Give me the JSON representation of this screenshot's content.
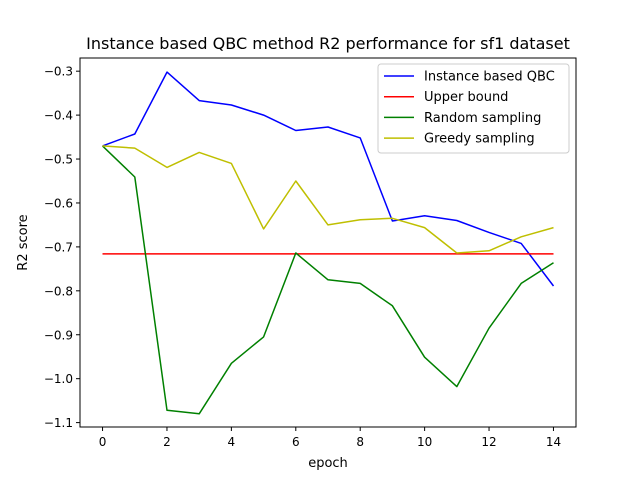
{
  "chart_data": {
    "type": "line",
    "title": "Instance based QBC method R2 performance for sf1 dataset",
    "xlabel": "epoch",
    "ylabel": "R2 score",
    "xlim": [
      -0.7,
      14.7
    ],
    "ylim": [
      -1.11,
      -0.27
    ],
    "xticks": [
      0,
      2,
      4,
      6,
      8,
      10,
      12,
      14
    ],
    "xtick_labels": [
      "0",
      "2",
      "4",
      "6",
      "8",
      "10",
      "12",
      "14"
    ],
    "yticks": [
      -1.1,
      -1.0,
      -0.9,
      -0.8,
      -0.7,
      -0.6,
      -0.5,
      -0.4,
      -0.3
    ],
    "ytick_labels": [
      "−1.1",
      "−1.0",
      "−0.9",
      "−0.8",
      "−0.7",
      "−0.6",
      "−0.5",
      "−0.4",
      "−0.3"
    ],
    "grid": false,
    "legend_position": "top-right",
    "x": [
      0,
      1,
      2,
      3,
      4,
      5,
      6,
      7,
      8,
      9,
      10,
      11,
      12,
      13,
      14
    ],
    "series": [
      {
        "name": "Instance based QBC",
        "color": "#0000ff",
        "values": [
          -0.47,
          -0.443,
          -0.302,
          -0.367,
          -0.377,
          -0.4,
          -0.435,
          -0.427,
          -0.452,
          -0.641,
          -0.629,
          -0.64,
          -0.667,
          -0.692,
          -0.789
        ]
      },
      {
        "name": "Upper bound",
        "color": "#ff0000",
        "values": [
          -0.716,
          -0.716,
          -0.716,
          -0.716,
          -0.716,
          -0.716,
          -0.716,
          -0.716,
          -0.716,
          -0.716,
          -0.716,
          -0.716,
          -0.716,
          -0.716,
          -0.716
        ]
      },
      {
        "name": "Random sampling",
        "color": "#008000",
        "values": [
          -0.47,
          -0.541,
          -1.072,
          -1.08,
          -0.965,
          -0.905,
          -0.714,
          -0.775,
          -0.783,
          -0.834,
          -0.951,
          -1.018,
          -0.885,
          -0.783,
          -0.736
        ]
      },
      {
        "name": "Greedy sampling",
        "color": "#bfbf00",
        "values": [
          -0.47,
          -0.475,
          -0.519,
          -0.485,
          -0.51,
          -0.659,
          -0.55,
          -0.65,
          -0.638,
          -0.635,
          -0.656,
          -0.714,
          -0.709,
          -0.677,
          -0.656
        ]
      }
    ]
  }
}
